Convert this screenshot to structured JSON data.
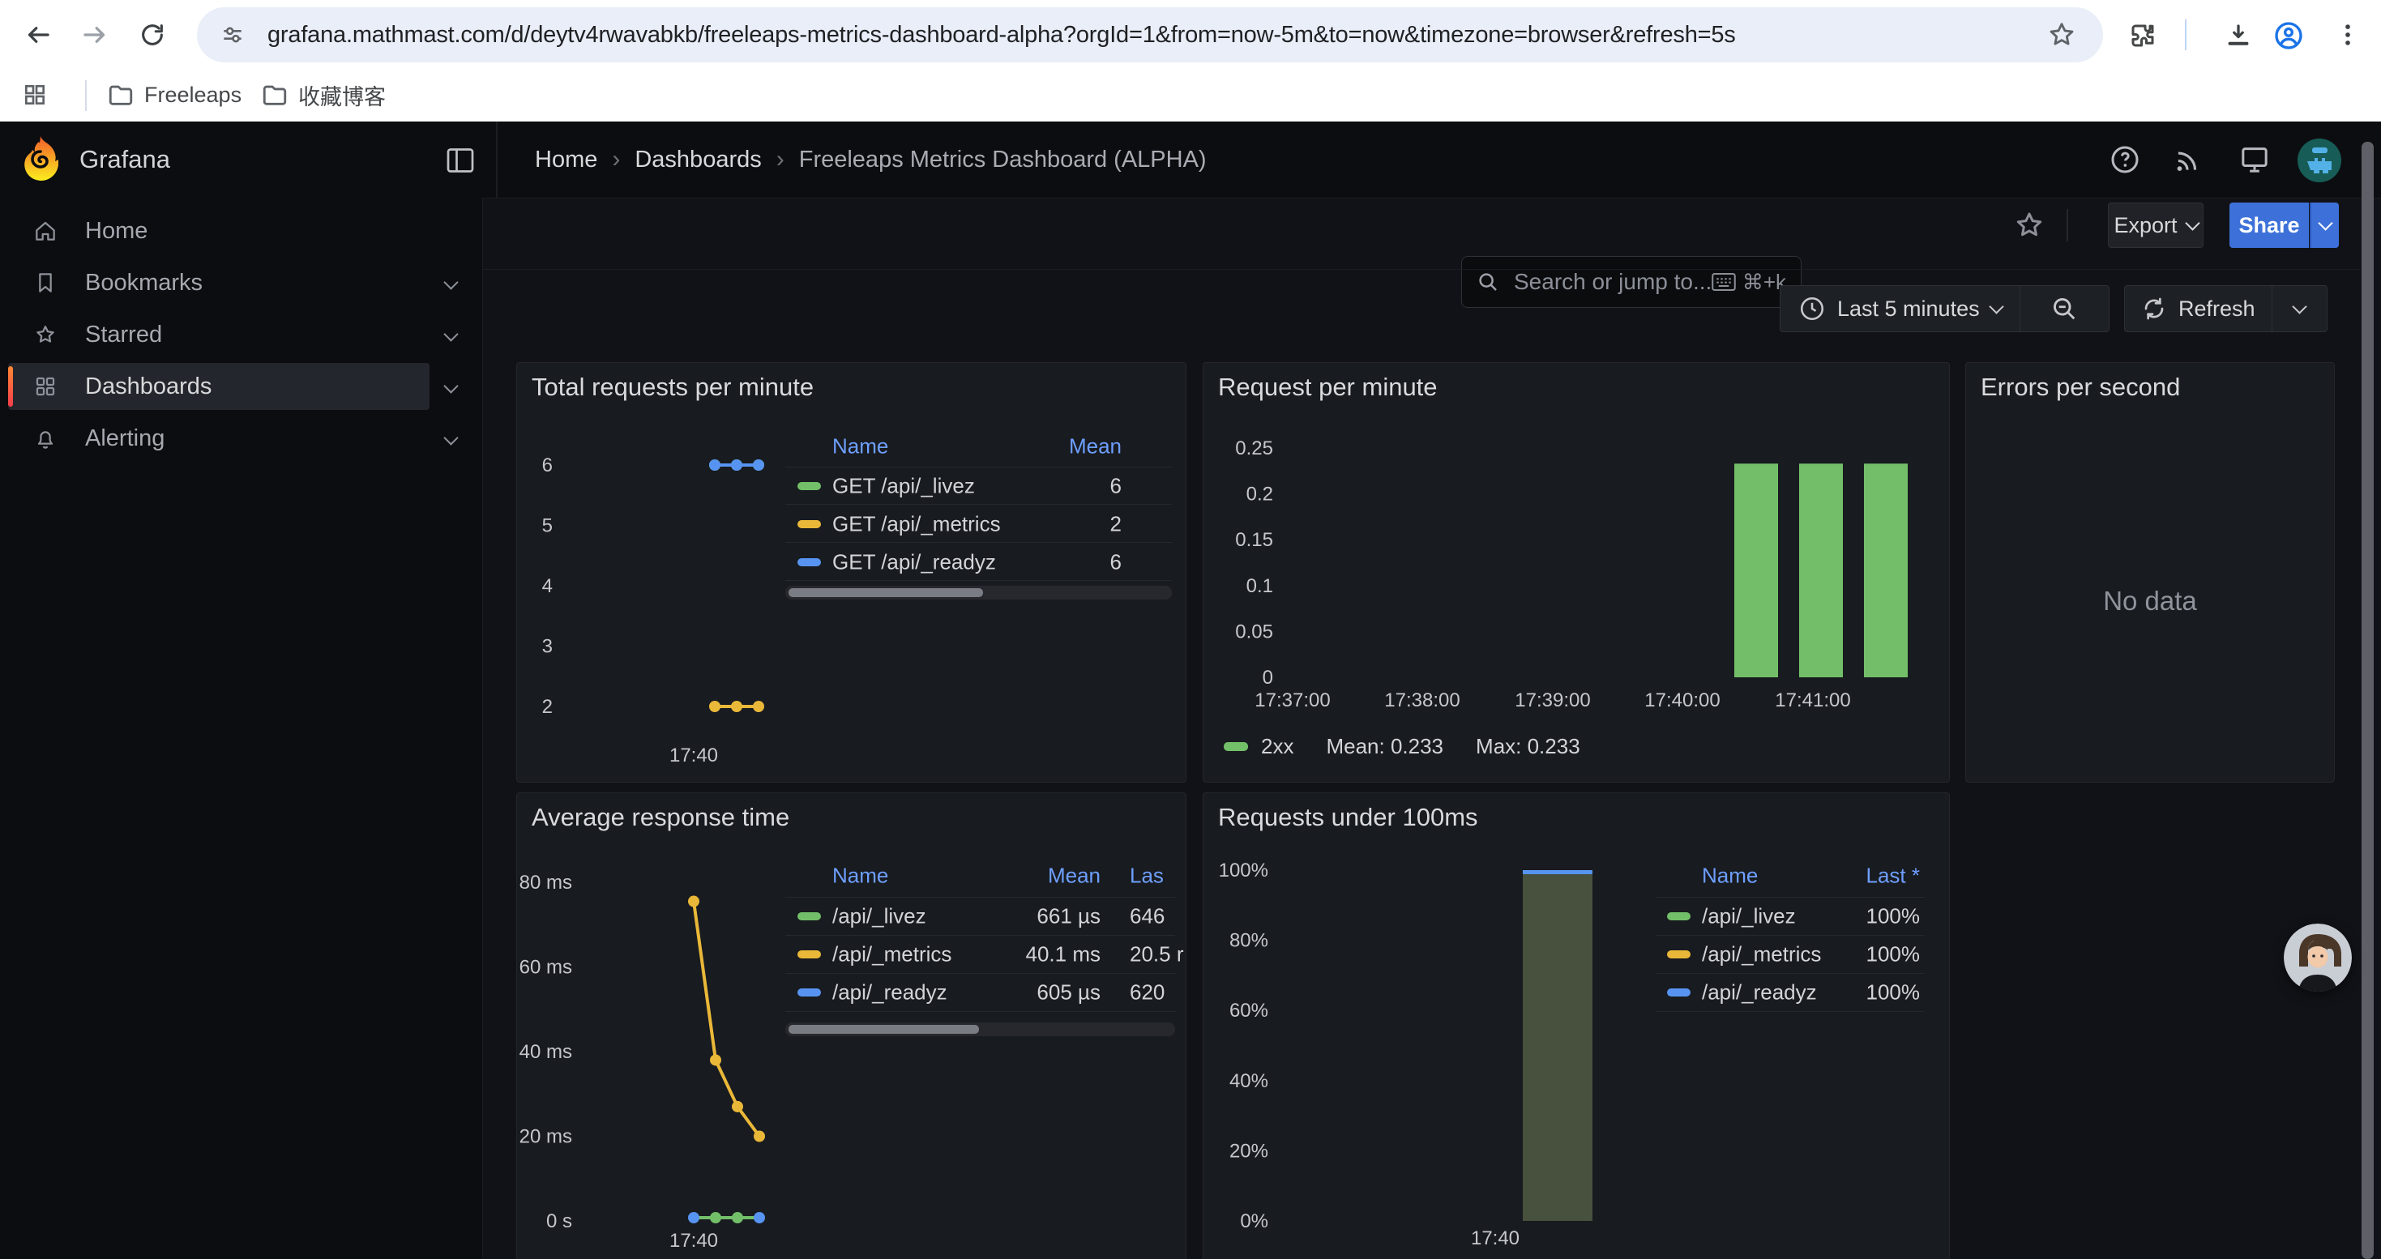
{
  "browser": {
    "url": "grafana.mathmast.com/d/deytv4rwavabkb/freeleaps-metrics-dashboard-alpha?orgId=1&from=now-5m&to=now&timezone=browser&refresh=5s",
    "bookmarks": [
      {
        "label": "Freeleaps"
      },
      {
        "label": "收藏博客"
      }
    ]
  },
  "nav": {
    "brand": "Grafana",
    "breadcrumb": [
      "Home",
      "Dashboards",
      "Freeleaps Metrics Dashboard (ALPHA)"
    ],
    "search": {
      "placeholder": "Search or jump to...",
      "shortcut": "⌘+k"
    }
  },
  "toolbar": {
    "export_label": "Export",
    "share_label": "Share"
  },
  "timebar": {
    "range_label": "Last 5 minutes",
    "refresh_label": "Refresh"
  },
  "sidebar": {
    "items": [
      {
        "label": "Home",
        "icon": "home",
        "chevron": false,
        "active": false
      },
      {
        "label": "Bookmarks",
        "icon": "bookmark",
        "chevron": true,
        "active": false
      },
      {
        "label": "Starred",
        "icon": "star",
        "chevron": true,
        "active": false
      },
      {
        "label": "Dashboards",
        "icon": "apps",
        "chevron": true,
        "active": true
      },
      {
        "label": "Alerting",
        "icon": "bell",
        "chevron": true,
        "active": false
      }
    ]
  },
  "icons": {
    "back": "arrow-left",
    "forward": "arrow-right",
    "reload": "refresh-circle",
    "site_settings": "tune-sliders",
    "bookmark_star": "star-outline",
    "extensions": "puzzle",
    "downloads": "arrow-into-tray",
    "profile": "person-circle",
    "menu": "three-dots-vertical",
    "apps_grid": "grid-2x2",
    "folder": "folder-outline",
    "help": "question-circle",
    "news": "rss",
    "monitor": "screen",
    "time_range": "clock",
    "zoom_out": "magnifier-minus",
    "refresh": "circular-arrow",
    "dock_menu": "panel-left"
  },
  "colors": {
    "accent_blue": "#3D71D9",
    "link_blue": "#6E9FFF",
    "green": "#73BF69",
    "yellow": "#EAB839",
    "blue": "#5794F2",
    "orange_accent": "#FF8833",
    "panel_bg": "#181B1F",
    "canvas_bg": "#111217",
    "chrome_bg": "#0C0D10"
  },
  "panels": {
    "total_requests": {
      "title": "Total requests per minute",
      "legend_headers": [
        "Name",
        "Mean"
      ],
      "chart_data": {
        "type": "line",
        "y_ticks": [
          "6",
          "5",
          "4",
          "3",
          "2"
        ],
        "y_tick_values": [
          6,
          5,
          4,
          3,
          2
        ],
        "x_tick": "17:40",
        "ylim": [
          1.6,
          6.5
        ],
        "series": [
          {
            "name": "GET /api/_livez",
            "color": "#73BF69",
            "values": [
              6,
              6,
              6
            ],
            "mean": "6"
          },
          {
            "name": "GET /api/_metrics",
            "color": "#EAB839",
            "values": [
              2,
              2,
              2
            ],
            "mean": "2"
          },
          {
            "name": "GET /api/_readyz",
            "color": "#5794F2",
            "values": [
              6,
              6,
              6
            ],
            "mean": "6"
          }
        ]
      }
    },
    "requests_per_minute": {
      "title": "Request per minute",
      "legend": {
        "series": "2xx",
        "mean": "Mean: 0.233",
        "max": "Max: 0.233",
        "color": "#73BF69"
      },
      "chart_data": {
        "type": "bar",
        "y_ticks": [
          "0.25",
          "0.2",
          "0.15",
          "0.1",
          "0.05",
          "0"
        ],
        "x_ticks": [
          "17:37:00",
          "17:38:00",
          "17:39:00",
          "17:40:00",
          "17:41:00"
        ],
        "ylim": [
          0,
          0.25
        ],
        "series": [
          {
            "name": "2xx",
            "color": "#73BF69",
            "mean": 0.233,
            "max": 0.233,
            "bars": [
              {
                "x": "17:40:30",
                "value": 0.233
              },
              {
                "x": "17:41:00",
                "value": 0.233
              },
              {
                "x": "17:41:30",
                "value": 0.233
              }
            ]
          }
        ]
      }
    },
    "errors_per_second": {
      "title": "Errors per second",
      "no_data": "No data"
    },
    "avg_response_time": {
      "title": "Average response time",
      "legend_headers": [
        "Name",
        "Mean",
        "Las"
      ],
      "chart_data": {
        "type": "line",
        "y_ticks": [
          "80 ms",
          "60 ms",
          "40 ms",
          "20 ms",
          "0 s"
        ],
        "x_tick": "17:40",
        "ylim_ms": [
          0,
          80
        ],
        "series": [
          {
            "name": "/api/_livez",
            "color": "#73BF69",
            "values_ms": [
              0.66,
              0.66,
              0.66,
              0.66
            ],
            "mean": "661 µs",
            "last": "646"
          },
          {
            "name": "/api/_metrics",
            "color": "#EAB839",
            "values_ms": [
              75.5,
              38,
              27,
              20
            ],
            "mean": "40.1 ms",
            "last": "20.5 r"
          },
          {
            "name": "/api/_readyz",
            "color": "#5794F2",
            "values_ms": [
              0.6,
              0.6,
              0.6,
              0.6
            ],
            "mean": "605 µs",
            "last": "620"
          }
        ]
      }
    },
    "requests_under_100ms": {
      "title": "Requests under 100ms",
      "legend_headers": [
        "Name",
        "Last *"
      ],
      "legend_rows": [
        {
          "name": "/api/_livez",
          "color": "#73BF69",
          "last": "100%"
        },
        {
          "name": "/api/_metrics",
          "color": "#EAB839",
          "last": "100%"
        },
        {
          "name": "/api/_readyz",
          "color": "#5794F2",
          "last": "100%"
        }
      ],
      "chart_data": {
        "type": "bar",
        "y_ticks": [
          "100%",
          "80%",
          "60%",
          "40%",
          "20%",
          "0%"
        ],
        "x_tick": "17:40",
        "ylim": [
          0,
          100
        ],
        "bars": [
          {
            "x": "17:40",
            "value": 100
          }
        ],
        "bar_fill": "#47513E",
        "bar_top_color": "#5794F2"
      }
    }
  }
}
